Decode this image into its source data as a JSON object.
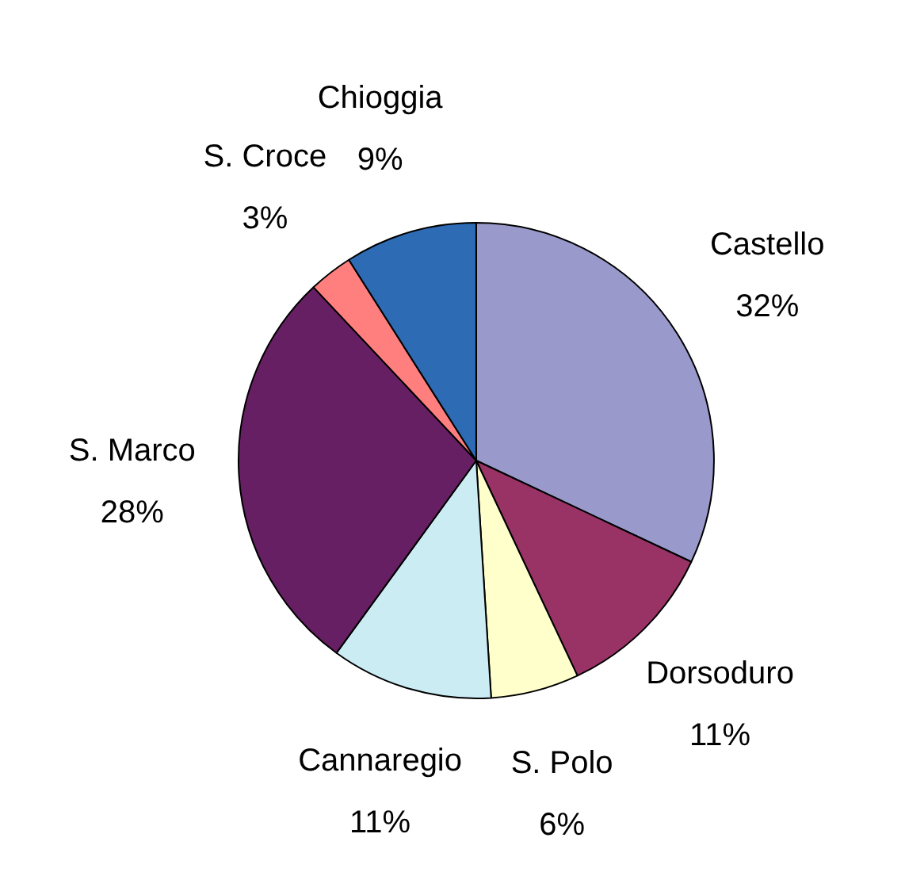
{
  "chart_data": {
    "type": "pie",
    "categories": [
      "Castello",
      "Dorsoduro",
      "S. Polo",
      "Cannaregio",
      "S. Marco",
      "S. Croce",
      "Chioggia"
    ],
    "values": [
      32,
      11,
      6,
      11,
      28,
      3,
      9
    ],
    "value_labels": [
      "32%",
      "11%",
      "6%",
      "11%",
      "28%",
      "3%",
      "9%"
    ],
    "colors": [
      "#9999cc",
      "#993366",
      "#ffffcc",
      "#ccecf4",
      "#661f63",
      "#ff7f7f",
      "#2e6bb5"
    ],
    "legend": false
  }
}
